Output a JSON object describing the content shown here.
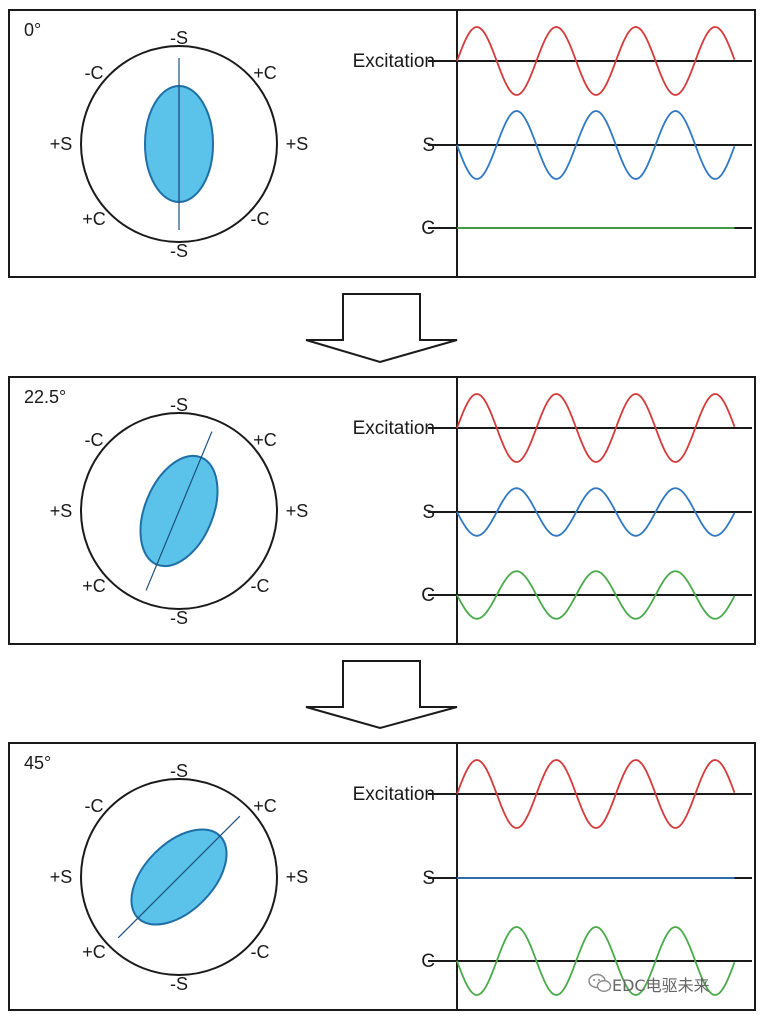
{
  "colors": {
    "frame": "#1a1a1a",
    "ellipse_fill": "#5bc3ea",
    "ellipse_stroke": "#1e6fa6",
    "excitation": "#d43a3a",
    "s_signal": "#2f78c4",
    "c_signal": "#4aaa4a"
  },
  "ring_labels": {
    "top": "-S",
    "bottom": "-S",
    "left": "+S",
    "right": "+S",
    "top_left": "-C",
    "top_right": "+C",
    "bottom_left": "+C",
    "bottom_right": "-C"
  },
  "signal_labels": {
    "excitation": "Excitation",
    "s": "S",
    "c": "C"
  },
  "panels": [
    {
      "angle_label": "0°",
      "rotation_deg": 0,
      "s_amplitude": 0.5,
      "c_amplitude": 0.0
    },
    {
      "angle_label": "22.5°",
      "rotation_deg": 22.5,
      "s_amplitude": 0.35,
      "c_amplitude": 0.35
    },
    {
      "angle_label": "45°",
      "rotation_deg": 45,
      "s_amplitude": 0.0,
      "c_amplitude": 0.5
    }
  ],
  "arrows": [
    {
      "direction": "down"
    },
    {
      "direction": "down"
    }
  ],
  "watermark": {
    "icon": "wechat-icon",
    "text": "EDC电驱未来"
  }
}
